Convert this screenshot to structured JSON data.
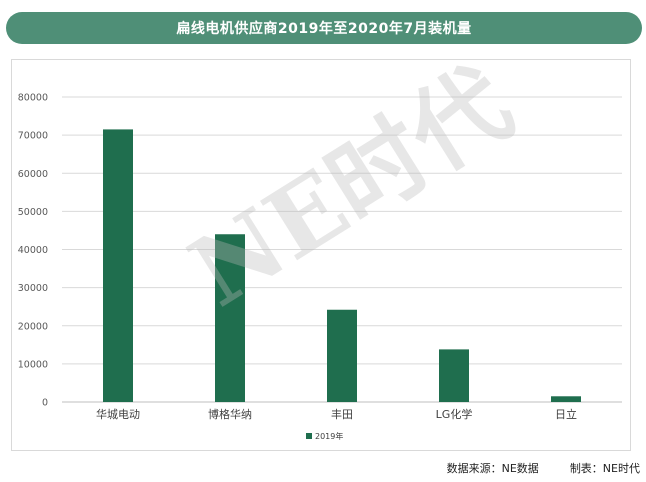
{
  "title": "扁线电机供应商2019年至2020年7月装机量",
  "watermark": "NE时代",
  "footer": {
    "source": "数据来源：NE数据",
    "producer": "制表：NE时代"
  },
  "colors": {
    "banner": "#4f8f77",
    "bar": "#1f6e4e"
  },
  "chart_data": {
    "type": "bar",
    "categories": [
      "华城电动",
      "博格华纳",
      "丰田",
      "LG化学",
      "日立"
    ],
    "series": [
      {
        "name": "2019年",
        "values": [
          71500,
          44000,
          24200,
          13800,
          1500
        ]
      }
    ],
    "yticks": [
      "0",
      "10000",
      "20000",
      "30000",
      "40000",
      "50000",
      "60000",
      "70000",
      "80000"
    ],
    "ylim": [
      0,
      80000
    ],
    "grid": true,
    "legend_position": "bottom"
  }
}
